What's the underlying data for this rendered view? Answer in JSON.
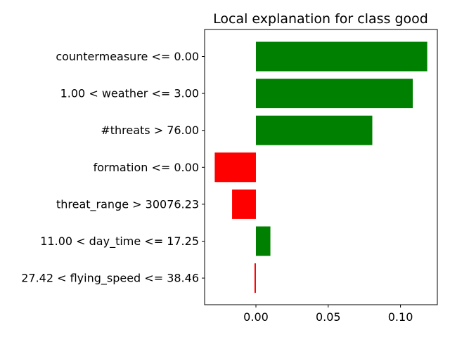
{
  "chart_data": {
    "type": "bar",
    "orientation": "horizontal",
    "title": "Local explanation for class good",
    "xlabel": "",
    "ylabel": "",
    "categories": [
      "countermeasure <= 0.00",
      "1.00 < weather <= 3.00",
      "#threats > 76.00",
      "formation <= 0.00",
      "threat_range > 30076.23",
      "11.00 < day_time <= 17.25",
      "27.42 < flying_speed <= 38.46"
    ],
    "values": [
      0.1185,
      0.1085,
      0.0805,
      -0.0285,
      -0.0165,
      0.01,
      -0.001
    ],
    "xlim": [
      -0.0355,
      0.1255
    ],
    "xticks": [
      0.0,
      0.05,
      0.1
    ],
    "xtick_labels": [
      "0.00",
      "0.05",
      "0.10"
    ],
    "positive_color": "#008000",
    "negative_color": "#ff0000",
    "grid": false
  }
}
